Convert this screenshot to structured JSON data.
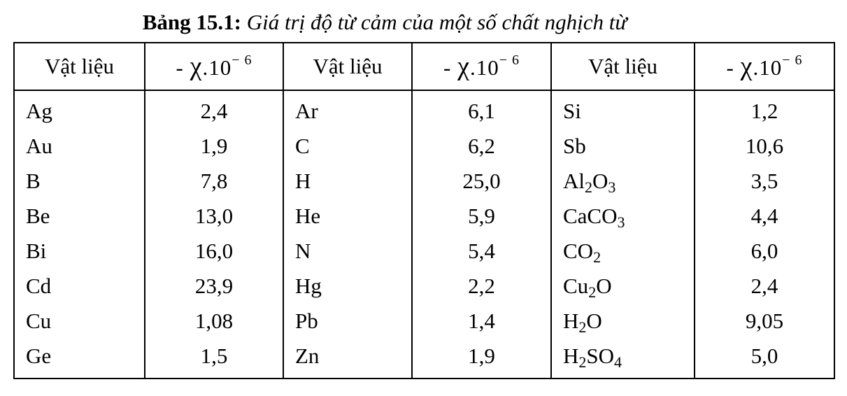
{
  "caption": {
    "label": "Bảng 15.1:",
    "text": " Giá trị độ từ cảm của một số chất nghịch từ"
  },
  "header": {
    "material": "Vật liệu",
    "chi_prefix": "- ",
    "chi_symbol": "χ",
    "chi_base": ".10",
    "chi_exponent": "− 6"
  },
  "rows": [
    [
      "Ag",
      "2,4",
      "Ar",
      "6,1",
      "Si",
      "1,2"
    ],
    [
      "Au",
      "1,9",
      "C",
      "6,2",
      "Sb",
      "10,6"
    ],
    [
      "B",
      "7,8",
      "H",
      "25,0",
      "Al2O3",
      "3,5"
    ],
    [
      "Be",
      "13,0",
      "He",
      "5,9",
      "CaCO3",
      "4,4"
    ],
    [
      "Bi",
      "16,0",
      "N",
      "5,4",
      "CO2",
      "6,0"
    ],
    [
      "Cd",
      "23,9",
      "Hg",
      "2,2",
      "Cu2O",
      "2,4"
    ],
    [
      "Cu",
      "1,08",
      "Pb",
      "1,4",
      "H2O",
      "9,05"
    ],
    [
      "Ge",
      "1,5",
      "Zn",
      "1,9",
      "H2SO4",
      "5,0"
    ]
  ]
}
